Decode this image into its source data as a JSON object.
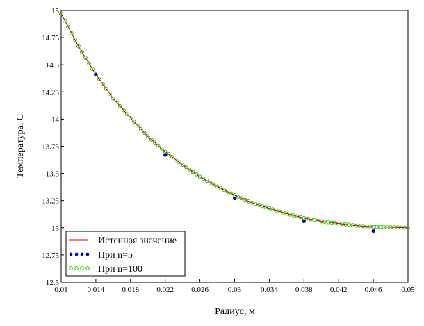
{
  "chart_data": {
    "type": "line",
    "xlabel": "Радиус, м",
    "ylabel": "Температура, С",
    "xlim": [
      0.01,
      0.05
    ],
    "ylim": [
      12.5,
      15
    ],
    "x_ticks": [
      "0.01",
      "0.014",
      "0.018",
      "0.022",
      "0.026",
      "0.03",
      "0.034",
      "0.038",
      "0.042",
      "0.046",
      "0.05"
    ],
    "y_ticks": [
      "12.5",
      "12.75",
      "13",
      "13.25",
      "13.5",
      "13.75",
      "14",
      "14.25",
      "14.5",
      "14.75",
      "15"
    ],
    "grid": false,
    "legend_position": "bottom-left",
    "series": [
      {
        "name": "Истенная значение",
        "style": "line",
        "color": "#cc0000",
        "x": [
          0.01,
          0.012,
          0.014,
          0.016,
          0.018,
          0.02,
          0.022,
          0.024,
          0.026,
          0.028,
          0.03,
          0.032,
          0.034,
          0.036,
          0.038,
          0.04,
          0.042,
          0.044,
          0.046,
          0.048,
          0.05
        ],
        "y": [
          14.97,
          14.67,
          14.41,
          14.19,
          14.01,
          13.84,
          13.7,
          13.58,
          13.47,
          13.38,
          13.3,
          13.23,
          13.18,
          13.13,
          13.09,
          13.06,
          13.04,
          13.02,
          13.01,
          13.005,
          13.0
        ]
      },
      {
        "name": "При n=5",
        "style": "filled-dots",
        "color": "#0000cc",
        "x": [
          0.014,
          0.022,
          0.03,
          0.038,
          0.046
        ],
        "y": [
          14.41,
          13.67,
          13.27,
          13.06,
          12.97
        ]
      },
      {
        "name": "При n=100",
        "style": "open-circles",
        "color": "#22cc00",
        "x_range": [
          0.01,
          0.05
        ],
        "points": 101,
        "follows": "Истенная значение"
      }
    ]
  }
}
